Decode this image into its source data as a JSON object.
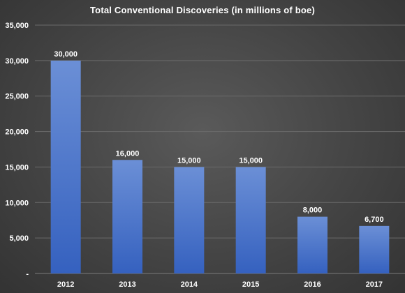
{
  "chart_data": {
    "type": "bar",
    "title": "Total Conventional Discoveries (in millions of boe)",
    "categories": [
      "2012",
      "2013",
      "2014",
      "2015",
      "2016",
      "2017"
    ],
    "values": [
      30000,
      16000,
      15000,
      15000,
      8000,
      6700
    ],
    "data_labels": [
      "30,000",
      "16,000",
      "15,000",
      "15,000",
      "8,000",
      "6,700"
    ],
    "ylim": [
      0,
      35000
    ],
    "yticks": [
      0,
      5000,
      10000,
      15000,
      20000,
      25000,
      30000,
      35000
    ],
    "ytick_labels": [
      "-",
      "5,000",
      "10,000",
      "15,000",
      "20,000",
      "25,000",
      "30,000",
      "35,000"
    ],
    "xlabel": "",
    "ylabel": "",
    "grid": true,
    "legend": "none",
    "colors": {
      "bar_top": "#6b8fd6",
      "bar_bottom": "#3561bf",
      "text": "#ffffff",
      "grid": "#6a6a6a"
    }
  }
}
